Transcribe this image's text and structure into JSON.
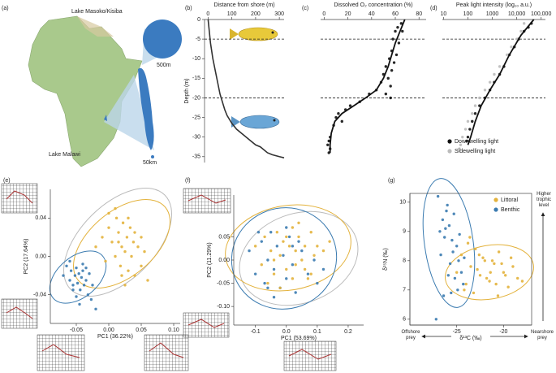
{
  "chart_data": [
    {
      "type": "map",
      "panel": "(a)",
      "labels": [
        "Lake Masoko/Kisiba",
        "500m",
        "Lake Malawi",
        "50km"
      ]
    },
    {
      "type": "line",
      "panel": "(b)",
      "title": "Distance from shore (m)",
      "ylabel": "Depth (m)",
      "xaxis": "top",
      "xlim": [
        -15,
        320
      ],
      "xticks": [
        0,
        100,
        200,
        300
      ],
      "ylim": [
        -36.5,
        0
      ],
      "yticks": [
        0,
        -5,
        -10,
        -15,
        -20,
        -25,
        -30,
        -35
      ],
      "hlines": [
        -5,
        -20
      ],
      "series": [
        {
          "color": "#333333",
          "x": [
            0,
            5,
            10,
            20,
            30,
            40,
            50,
            60,
            70,
            80,
            100,
            120,
            150,
            180,
            200,
            220,
            250,
            270,
            300,
            320
          ],
          "values": [
            0,
            -3,
            -6,
            -10,
            -13,
            -16,
            -19,
            -21,
            -23,
            -24.5,
            -26.5,
            -28,
            -29.5,
            -31,
            -32,
            -32.5,
            -34,
            -34.5,
            -35,
            -35.3
          ]
        }
      ]
    },
    {
      "type": "scatter",
      "panel": "(c)",
      "title": "Dissolved O₂ concentration (%)",
      "xaxis": "top",
      "xlim": [
        -3,
        86
      ],
      "xticks": [
        0,
        20,
        40,
        60,
        80
      ],
      "ylim": [
        -36.5,
        0
      ],
      "hlines": [
        -5,
        -20
      ],
      "series": [
        {
          "color": "#111111",
          "x": [
            65,
            62,
            60,
            66,
            58,
            63,
            57,
            61,
            55,
            59,
            52,
            57,
            50,
            54,
            48,
            44,
            56,
            38,
            30,
            22,
            18,
            12,
            10,
            15,
            8,
            5,
            4,
            3,
            5,
            4,
            56,
            52
          ],
          "values": [
            -1,
            -2,
            -3,
            -3,
            -5,
            -6,
            -8,
            -9,
            -10,
            -11,
            -12,
            -13,
            -14,
            -15,
            -16,
            -18,
            -17,
            -19,
            -21,
            -22,
            -23,
            -24,
            -25,
            -26,
            -27,
            -30,
            -31,
            -32,
            -33,
            -34,
            -20,
            -19
          ]
        }
      ],
      "fit": {
        "color": "#111111",
        "x": [
          68,
          64,
          60,
          57,
          54,
          50,
          44,
          35,
          25,
          15,
          9,
          6,
          5,
          5
        ],
        "values": [
          0,
          -3,
          -6,
          -9,
          -12,
          -15,
          -18,
          -20,
          -22,
          -24,
          -26,
          -29,
          -32,
          -34
        ]
      }
    },
    {
      "type": "scatter",
      "panel": "(d)",
      "title": "Peak light intensity (log₁₀ a.u.)",
      "xaxis": "top",
      "xscale": "log",
      "xlim": [
        9,
        150000
      ],
      "xticks": [
        10,
        100,
        1000,
        {
          "value": 10000,
          "label": "10,000"
        },
        {
          "value": 100000,
          "label": "100,000"
        }
      ],
      "ylim": [
        -36.5,
        0
      ],
      "hlines": [
        -5,
        -20
      ],
      "legend": "lower right",
      "series": [
        {
          "name": "Downwelling light",
          "color": "#111111",
          "x": [
            40000,
            30000,
            20000,
            12000,
            8000,
            5000,
            3000,
            2000,
            1200,
            800,
            500,
            300,
            200,
            150,
            120,
            100,
            90
          ],
          "values": [
            -1,
            -2,
            -3,
            -5,
            -7,
            -9,
            -12,
            -14,
            -16,
            -18,
            -20,
            -22,
            -24,
            -26,
            -28,
            -30,
            -31
          ]
        },
        {
          "name": "Sidewelling light",
          "color": "#bbbbbb",
          "x": [
            20000,
            15000,
            10000,
            6000,
            4000,
            2000,
            1200,
            800,
            500,
            300,
            200,
            150,
            100,
            80,
            60,
            50,
            45
          ],
          "values": [
            -1,
            -3,
            -5,
            -7,
            -9,
            -12,
            -14,
            -16,
            -18,
            -20,
            -22,
            -24,
            -26,
            -28,
            -30,
            -32,
            -33
          ]
        }
      ],
      "fit": {
        "color": "#111111",
        "x": [
          50000,
          15000,
          5000,
          2000,
          800,
          350,
          200,
          130,
          100
        ],
        "values": [
          0,
          -4,
          -9,
          -14,
          -18,
          -22,
          -26,
          -30,
          -32
        ]
      }
    },
    {
      "type": "scatter",
      "panel": "(e)",
      "xlabel": "PC1 (36.22%)",
      "ylabel": "PC2 (17.64%)",
      "xlim": [
        -0.09,
        0.11
      ],
      "xticks": [
        -0.05,
        {
          "value": 0,
          "label": "0.00"
        },
        0.05,
        {
          "value": 0.1,
          "label": "0.10"
        }
      ],
      "ylim": [
        -0.07,
        0.07
      ],
      "yticks": [
        -0.04,
        {
          "value": 0,
          "label": "0.00"
        },
        0.04
      ],
      "series": [
        {
          "color": "#3b7bb0",
          "x": [
            -0.07,
            -0.065,
            -0.06,
            -0.058,
            -0.055,
            -0.052,
            -0.05,
            -0.048,
            -0.046,
            -0.044,
            -0.042,
            -0.04,
            -0.038,
            -0.035,
            -0.032,
            -0.03,
            -0.027,
            -0.025,
            -0.06,
            -0.055,
            -0.045,
            -0.04,
            -0.035,
            -0.05,
            -0.02
          ],
          "values": [
            -0.02,
            -0.01,
            -0.025,
            -0.015,
            -0.03,
            -0.02,
            -0.012,
            -0.028,
            -0.018,
            -0.035,
            -0.022,
            -0.015,
            -0.03,
            -0.025,
            -0.04,
            -0.018,
            -0.045,
            -0.03,
            -0.005,
            -0.035,
            -0.05,
            -0.008,
            -0.012,
            -0.042,
            -0.055
          ]
        },
        {
          "color": "#e3b23c",
          "x": [
            -0.02,
            -0.01,
            -0.005,
            0.0,
            0.005,
            0.01,
            0.012,
            0.015,
            0.018,
            0.02,
            0.022,
            0.025,
            0.028,
            0.03,
            0.033,
            0.035,
            0.038,
            0.04,
            0.045,
            0.05,
            0.055,
            0.06,
            0.0,
            0.01,
            0.02,
            0.03,
            0.04,
            0.015,
            0.025,
            0.05
          ],
          "values": [
            0.01,
            0.02,
            -0.005,
            0.03,
            0.015,
            0.0,
            0.04,
            0.025,
            -0.01,
            0.01,
            0.035,
            0.005,
            0.02,
            -0.015,
            0.03,
            0.0,
            0.015,
            -0.02,
            0.01,
            -0.01,
            0.005,
            -0.025,
            0.045,
            0.05,
            -0.02,
            0.04,
            0.025,
            0.015,
            -0.03,
            0.02
          ]
        }
      ]
    },
    {
      "type": "scatter",
      "panel": "(f)",
      "xlabel": "PC1 (53.69%)",
      "ylabel": "PC2 (11.29%)",
      "xlim": [
        -0.17,
        0.25
      ],
      "xticks": [
        -0.1,
        {
          "value": 0,
          "label": "0.0"
        },
        0.1,
        0.2
      ],
      "ylim": [
        -0.14,
        0.14
      ],
      "yticks": [
        {
          "value": -0.1,
          "label": "-0.10"
        },
        -0.05,
        {
          "value": 0,
          "label": "0.00"
        },
        0.05
      ],
      "series": [
        {
          "color": "#3b7bb0",
          "x": [
            -0.12,
            -0.1,
            -0.08,
            -0.07,
            -0.06,
            -0.05,
            -0.04,
            -0.03,
            -0.02,
            -0.01,
            0.0,
            0.01,
            0.02,
            0.03,
            0.05,
            0.07,
            0.09,
            0.1,
            -0.09,
            -0.04,
            0.0,
            0.04,
            -0.06,
            0.02,
            0.12
          ],
          "values": [
            0.02,
            -0.03,
            0.04,
            -0.05,
            0.0,
            0.06,
            -0.02,
            0.03,
            -0.06,
            0.01,
            -0.04,
            0.05,
            -0.01,
            -0.07,
            0.02,
            -0.03,
            0.0,
            -0.05,
            0.06,
            -0.08,
            0.07,
            0.04,
            -0.06,
            0.03,
            -0.02
          ]
        },
        {
          "color": "#e3b23c",
          "x": [
            -0.1,
            -0.08,
            -0.07,
            -0.05,
            -0.04,
            -0.03,
            -0.02,
            -0.01,
            0.0,
            0.01,
            0.02,
            0.03,
            0.04,
            0.05,
            0.06,
            0.07,
            0.08,
            0.09,
            0.1,
            0.12,
            -0.06,
            -0.02,
            0.02,
            0.04,
            0.06,
            0.0,
            0.03,
            -0.04,
            0.08,
            0.14
          ],
          "values": [
            0.03,
            -0.01,
            0.05,
            0.02,
            -0.03,
            0.06,
            0.01,
            0.04,
            -0.02,
            0.03,
            0.07,
            -0.01,
            0.05,
            0.0,
            0.03,
            -0.04,
            0.06,
            0.01,
            0.03,
            0.02,
            -0.05,
            -0.06,
            -0.04,
            0.08,
            -0.02,
            0.05,
            0.02,
            0.0,
            -0.03,
            0.04
          ]
        }
      ]
    },
    {
      "type": "scatter",
      "panel": "(g)",
      "xlabel": "δ¹³C (‰)",
      "ylabel": "δ¹⁵N (‰)",
      "frame": true,
      "xlim": [
        -30,
        -17
      ],
      "xticks": [
        -25,
        -20
      ],
      "ylim": [
        5.8,
        10.3
      ],
      "yticks": [
        6,
        7,
        8,
        9,
        10
      ],
      "legend": "upper right",
      "annotations": [
        "Higher trophic level",
        "Offshore prey",
        "Nearshore prey"
      ],
      "series": [
        {
          "name": "Littoral",
          "color": "#e3b23c",
          "x": [
            -25,
            -24.5,
            -24,
            -23.5,
            -23,
            -22.5,
            -22,
            -21.5,
            -21,
            -20.5,
            -20,
            -19.5,
            -19,
            -18.5,
            -23.8,
            -23.2,
            -22.8,
            -22.2,
            -21.8,
            -21.2,
            -20.8,
            -20.2,
            -19.8,
            -24.2,
            -22.6,
            -21.4,
            -20.6,
            -19.2,
            -18,
            -23.6
          ],
          "values": [
            7.6,
            8.2,
            7.2,
            7.8,
            8.4,
            7.5,
            8.0,
            7.3,
            7.9,
            8.3,
            7.6,
            7.1,
            7.8,
            7.4,
            8.6,
            6.9,
            7.7,
            8.1,
            7.4,
            8.0,
            7.2,
            7.9,
            7.5,
            7.0,
            8.2,
            7.6,
            6.8,
            8.1,
            7.3,
            8.8
          ]
        },
        {
          "name": "Benthic",
          "color": "#3b7bb0",
          "x": [
            -27,
            -26.8,
            -26.5,
            -26.3,
            -26,
            -25.8,
            -25.5,
            -25.3,
            -25,
            -24.8,
            -24.5,
            -24.3,
            -26.7,
            -26.2,
            -25.7,
            -25.2,
            -24.7,
            -26.4,
            -25.9,
            -25.4,
            -24.9,
            -26.1,
            -25.6,
            -27.2,
            -24.2
          ],
          "values": [
            10.2,
            9.0,
            9.4,
            8.8,
            9.9,
            9.2,
            8.7,
            9.6,
            8.5,
            8.0,
            7.6,
            7.2,
            8.2,
            9.1,
            7.9,
            7.4,
            8.9,
            6.8,
            7.5,
            8.3,
            7.0,
            9.7,
            6.9,
            6.0,
            8.1
          ]
        }
      ]
    }
  ]
}
